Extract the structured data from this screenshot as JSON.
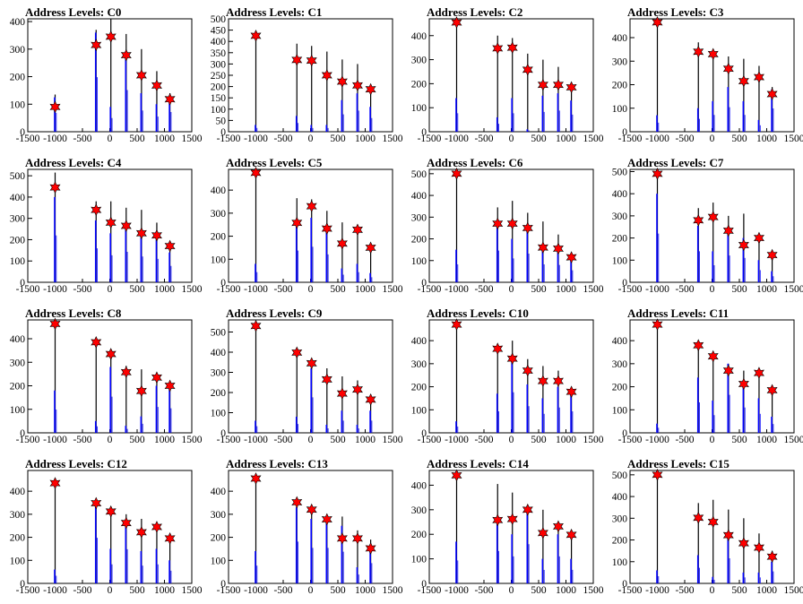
{
  "chart_data": [
    {
      "type": "bar",
      "title": "Address Levels: C0",
      "xlim": [
        -1500,
        1500
      ],
      "ylim": [
        0,
        410
      ],
      "xticks": [
        -1500,
        -1000,
        -500,
        0,
        500,
        1000,
        1500
      ],
      "yticks": [
        0,
        100,
        200,
        300,
        400
      ],
      "levels": [
        {
          "x": -1000,
          "peak": 90,
          "black": 135,
          "blue": 125
        },
        {
          "x": -250,
          "peak": 315,
          "black": 370,
          "blue": 360
        },
        {
          "x": 20,
          "peak": 345,
          "black": 410,
          "blue": 90
        },
        {
          "x": 300,
          "peak": 278,
          "black": 355,
          "blue": 275
        },
        {
          "x": 580,
          "peak": 205,
          "black": 300,
          "blue": 140
        },
        {
          "x": 860,
          "peak": 168,
          "black": 220,
          "blue": 100
        },
        {
          "x": 1100,
          "peak": 118,
          "black": 140,
          "blue": 130
        }
      ]
    },
    {
      "type": "bar",
      "title": "Address Levels: C1",
      "xlim": [
        -1500,
        1500
      ],
      "ylim": [
        0,
        500
      ],
      "xticks": [
        -1500,
        -1000,
        -500,
        0,
        500,
        1000,
        1500
      ],
      "yticks": [
        0,
        50,
        100,
        150,
        200,
        250,
        300,
        350,
        400,
        450,
        500
      ],
      "levels": [
        {
          "x": -1000,
          "peak": 425,
          "black": 425,
          "blue": 30
        },
        {
          "x": -250,
          "peak": 318,
          "black": 390,
          "blue": 70
        },
        {
          "x": 20,
          "peak": 315,
          "black": 380,
          "blue": 30
        },
        {
          "x": 300,
          "peak": 250,
          "black": 355,
          "blue": 30
        },
        {
          "x": 580,
          "peak": 222,
          "black": 320,
          "blue": 140
        },
        {
          "x": 860,
          "peak": 205,
          "black": 300,
          "blue": 170
        },
        {
          "x": 1100,
          "peak": 188,
          "black": 200,
          "blue": 110
        }
      ]
    },
    {
      "type": "bar",
      "title": "Address Levels: C2",
      "xlim": [
        -1500,
        1500
      ],
      "ylim": [
        0,
        470
      ],
      "xticks": [
        -1500,
        -1000,
        -500,
        0,
        500,
        1000,
        1500
      ],
      "yticks": [
        0,
        100,
        200,
        300,
        400
      ],
      "levels": [
        {
          "x": -1000,
          "peak": 455,
          "black": 455,
          "blue": 140
        },
        {
          "x": -250,
          "peak": 347,
          "black": 400,
          "blue": 60
        },
        {
          "x": 20,
          "peak": 350,
          "black": 390,
          "blue": 140
        },
        {
          "x": 300,
          "peak": 258,
          "black": 325,
          "blue": 10
        },
        {
          "x": 580,
          "peak": 195,
          "black": 300,
          "blue": 150
        },
        {
          "x": 860,
          "peak": 195,
          "black": 270,
          "blue": 160
        },
        {
          "x": 1100,
          "peak": 185,
          "black": 195,
          "blue": 130
        }
      ]
    },
    {
      "type": "bar",
      "title": "Address Levels: C3",
      "xlim": [
        -1500,
        1500
      ],
      "ylim": [
        0,
        480
      ],
      "xticks": [
        -1500,
        -1000,
        -500,
        0,
        500,
        1000,
        1500
      ],
      "yticks": [
        0,
        100,
        200,
        300,
        400
      ],
      "levels": [
        {
          "x": -1000,
          "peak": 465,
          "black": 465,
          "blue": 70
        },
        {
          "x": -250,
          "peak": 340,
          "black": 380,
          "blue": 100
        },
        {
          "x": 20,
          "peak": 330,
          "black": 340,
          "blue": 130
        },
        {
          "x": 300,
          "peak": 268,
          "black": 320,
          "blue": 190
        },
        {
          "x": 580,
          "peak": 215,
          "black": 310,
          "blue": 130
        },
        {
          "x": 860,
          "peak": 232,
          "black": 280,
          "blue": 50
        },
        {
          "x": 1100,
          "peak": 160,
          "black": 190,
          "blue": 180
        }
      ]
    },
    {
      "type": "bar",
      "title": "Address Levels: C4",
      "xlim": [
        -1500,
        1500
      ],
      "ylim": [
        0,
        530
      ],
      "xticks": [
        -1500,
        -1000,
        -500,
        0,
        500,
        1000,
        1500
      ],
      "yticks": [
        0,
        100,
        200,
        300,
        400,
        500
      ],
      "levels": [
        {
          "x": -1000,
          "peak": 445,
          "black": 515,
          "blue": 400
        },
        {
          "x": -250,
          "peak": 340,
          "black": 380,
          "blue": 290
        },
        {
          "x": 20,
          "peak": 280,
          "black": 380,
          "blue": 230
        },
        {
          "x": 300,
          "peak": 265,
          "black": 350,
          "blue": 260
        },
        {
          "x": 580,
          "peak": 230,
          "black": 340,
          "blue": 220
        },
        {
          "x": 860,
          "peak": 220,
          "black": 280,
          "blue": 200
        },
        {
          "x": 1100,
          "peak": 170,
          "black": 190,
          "blue": 140
        }
      ]
    },
    {
      "type": "bar",
      "title": "Address Levels: C5",
      "xlim": [
        -1500,
        1500
      ],
      "ylim": [
        0,
        490
      ],
      "xticks": [
        -1500,
        -1000,
        -500,
        0,
        500,
        1000,
        1500
      ],
      "yticks": [
        0,
        100,
        200,
        300,
        400
      ],
      "levels": [
        {
          "x": -1000,
          "peak": 475,
          "black": 475,
          "blue": 80
        },
        {
          "x": -250,
          "peak": 258,
          "black": 365,
          "blue": 250
        },
        {
          "x": 20,
          "peak": 330,
          "black": 360,
          "blue": 280
        },
        {
          "x": 300,
          "peak": 233,
          "black": 310,
          "blue": 220
        },
        {
          "x": 580,
          "peak": 168,
          "black": 260,
          "blue": 60
        },
        {
          "x": 860,
          "peak": 228,
          "black": 230,
          "blue": 80
        },
        {
          "x": 1100,
          "peak": 150,
          "black": 160,
          "blue": 40
        }
      ]
    },
    {
      "type": "bar",
      "title": "Address Levels: C6",
      "xlim": [
        -1500,
        1500
      ],
      "ylim": [
        0,
        520
      ],
      "xticks": [
        -1500,
        -1000,
        -500,
        0,
        500,
        1000,
        1500
      ],
      "yticks": [
        0,
        100,
        200,
        300,
        400,
        500
      ],
      "levels": [
        {
          "x": -1000,
          "peak": 500,
          "black": 500,
          "blue": 150
        },
        {
          "x": -250,
          "peak": 270,
          "black": 345,
          "blue": 265
        },
        {
          "x": 20,
          "peak": 270,
          "black": 375,
          "blue": 200
        },
        {
          "x": 300,
          "peak": 250,
          "black": 320,
          "blue": 240
        },
        {
          "x": 580,
          "peak": 160,
          "black": 280,
          "blue": 150
        },
        {
          "x": 860,
          "peak": 155,
          "black": 220,
          "blue": 145
        },
        {
          "x": 1100,
          "peak": 115,
          "black": 125,
          "blue": 100
        }
      ]
    },
    {
      "type": "bar",
      "title": "Address Levels: C7",
      "xlim": [
        -1500,
        1500
      ],
      "ylim": [
        0,
        510
      ],
      "xticks": [
        -1500,
        -1000,
        -500,
        0,
        500,
        1000,
        1500
      ],
      "yticks": [
        0,
        100,
        200,
        300,
        400,
        500
      ],
      "levels": [
        {
          "x": -1000,
          "peak": 490,
          "black": 490,
          "blue": 400
        },
        {
          "x": -250,
          "peak": 280,
          "black": 335,
          "blue": 255
        },
        {
          "x": 20,
          "peak": 295,
          "black": 360,
          "blue": 140
        },
        {
          "x": 300,
          "peak": 233,
          "black": 300,
          "blue": 220
        },
        {
          "x": 580,
          "peak": 168,
          "black": 310,
          "blue": 200
        },
        {
          "x": 860,
          "peak": 200,
          "black": 210,
          "blue": 100
        },
        {
          "x": 1100,
          "peak": 123,
          "black": 125,
          "blue": 50
        }
      ]
    },
    {
      "type": "bar",
      "title": "Address Levels: C8",
      "xlim": [
        -1500,
        1500
      ],
      "ylim": [
        0,
        480
      ],
      "xticks": [
        -1500,
        -1000,
        -500,
        0,
        500,
        1000,
        1500
      ],
      "yticks": [
        0,
        100,
        200,
        300,
        400
      ],
      "levels": [
        {
          "x": -1000,
          "peak": 463,
          "black": 463,
          "blue": 180
        },
        {
          "x": -250,
          "peak": 385,
          "black": 390,
          "blue": 50
        },
        {
          "x": 20,
          "peak": 335,
          "black": 340,
          "blue": 280
        },
        {
          "x": 300,
          "peak": 258,
          "black": 285,
          "blue": 30
        },
        {
          "x": 580,
          "peak": 178,
          "black": 270,
          "blue": 70
        },
        {
          "x": 860,
          "peak": 235,
          "black": 240,
          "blue": 200
        },
        {
          "x": 1100,
          "peak": 200,
          "black": 205,
          "blue": 190
        }
      ]
    },
    {
      "type": "bar",
      "title": "Address Levels: C9",
      "xlim": [
        -1500,
        1500
      ],
      "ylim": [
        0,
        560
      ],
      "xticks": [
        -1500,
        -1000,
        -500,
        0,
        500,
        1000,
        1500
      ],
      "yticks": [
        0,
        100,
        200,
        300,
        400,
        500
      ],
      "levels": [
        {
          "x": -1000,
          "peak": 530,
          "black": 530,
          "blue": 60
        },
        {
          "x": -250,
          "peak": 398,
          "black": 410,
          "blue": 80
        },
        {
          "x": 20,
          "peak": 345,
          "black": 345,
          "blue": 320
        },
        {
          "x": 300,
          "peak": 265,
          "black": 320,
          "blue": 40
        },
        {
          "x": 580,
          "peak": 195,
          "black": 280,
          "blue": 110
        },
        {
          "x": 860,
          "peak": 215,
          "black": 260,
          "blue": 40
        },
        {
          "x": 1100,
          "peak": 165,
          "black": 190,
          "blue": 110
        }
      ]
    },
    {
      "type": "bar",
      "title": "Address Levels: C10",
      "xlim": [
        -1500,
        1500
      ],
      "ylim": [
        0,
        490
      ],
      "xticks": [
        -1500,
        -1000,
        -500,
        0,
        500,
        1000,
        1500
      ],
      "yticks": [
        0,
        100,
        200,
        300,
        400
      ],
      "levels": [
        {
          "x": -1000,
          "peak": 470,
          "black": 470,
          "blue": 50
        },
        {
          "x": -250,
          "peak": 365,
          "black": 370,
          "blue": 170
        },
        {
          "x": 20,
          "peak": 322,
          "black": 400,
          "blue": 320
        },
        {
          "x": 300,
          "peak": 270,
          "black": 320,
          "blue": 210
        },
        {
          "x": 580,
          "peak": 225,
          "black": 290,
          "blue": 150
        },
        {
          "x": 860,
          "peak": 225,
          "black": 270,
          "blue": 200
        },
        {
          "x": 1100,
          "peak": 178,
          "black": 185,
          "blue": 170
        }
      ]
    },
    {
      "type": "bar",
      "title": "Address Levels: C11",
      "xlim": [
        -1500,
        1500
      ],
      "ylim": [
        0,
        490
      ],
      "xticks": [
        -1500,
        -1000,
        -500,
        0,
        500,
        1000,
        1500
      ],
      "yticks": [
        0,
        100,
        200,
        300,
        400
      ],
      "levels": [
        {
          "x": -1000,
          "peak": 470,
          "black": 470,
          "blue": 40
        },
        {
          "x": -250,
          "peak": 380,
          "black": 380,
          "blue": 240
        },
        {
          "x": 20,
          "peak": 332,
          "black": 340,
          "blue": 140
        },
        {
          "x": 300,
          "peak": 270,
          "black": 300,
          "blue": 300
        },
        {
          "x": 580,
          "peak": 212,
          "black": 270,
          "blue": 200
        },
        {
          "x": 860,
          "peak": 260,
          "black": 260,
          "blue": 150
        },
        {
          "x": 1100,
          "peak": 185,
          "black": 200,
          "blue": 70
        }
      ]
    },
    {
      "type": "bar",
      "title": "Address Levels: C12",
      "xlim": [
        -1500,
        1500
      ],
      "ylim": [
        0,
        490
      ],
      "xticks": [
        -1500,
        -1000,
        -500,
        0,
        500,
        1000,
        1500
      ],
      "yticks": [
        0,
        100,
        200,
        300,
        400
      ],
      "levels": [
        {
          "x": -1000,
          "peak": 435,
          "black": 435,
          "blue": 60
        },
        {
          "x": -250,
          "peak": 348,
          "black": 370,
          "blue": 360
        },
        {
          "x": 20,
          "peak": 312,
          "black": 320,
          "blue": 150
        },
        {
          "x": 300,
          "peak": 262,
          "black": 300,
          "blue": 270
        },
        {
          "x": 580,
          "peak": 222,
          "black": 280,
          "blue": 140
        },
        {
          "x": 860,
          "peak": 245,
          "black": 260,
          "blue": 150
        },
        {
          "x": 1100,
          "peak": 195,
          "black": 200,
          "blue": 100
        }
      ]
    },
    {
      "type": "bar",
      "title": "Address Levels: C13",
      "xlim": [
        -1500,
        1500
      ],
      "ylim": [
        0,
        490
      ],
      "xticks": [
        -1500,
        -1000,
        -500,
        0,
        500,
        1000,
        1500
      ],
      "yticks": [
        0,
        100,
        200,
        300,
        400
      ],
      "levels": [
        {
          "x": -1000,
          "peak": 455,
          "black": 455,
          "blue": 140
        },
        {
          "x": -250,
          "peak": 352,
          "black": 370,
          "blue": 330
        },
        {
          "x": 20,
          "peak": 320,
          "black": 320,
          "blue": 280
        },
        {
          "x": 300,
          "peak": 278,
          "black": 300,
          "blue": 280
        },
        {
          "x": 580,
          "peak": 195,
          "black": 290,
          "blue": 250
        },
        {
          "x": 860,
          "peak": 195,
          "black": 230,
          "blue": 70
        },
        {
          "x": 1100,
          "peak": 152,
          "black": 190,
          "blue": 160
        }
      ]
    },
    {
      "type": "bar",
      "title": "Address Levels: C14",
      "xlim": [
        -1500,
        1500
      ],
      "ylim": [
        0,
        460
      ],
      "xticks": [
        -1500,
        -1000,
        -500,
        0,
        500,
        1000,
        1500
      ],
      "yticks": [
        0,
        100,
        200,
        300,
        400
      ],
      "levels": [
        {
          "x": -1000,
          "peak": 440,
          "black": 440,
          "blue": 170
        },
        {
          "x": -250,
          "peak": 258,
          "black": 405,
          "blue": 240
        },
        {
          "x": 20,
          "peak": 262,
          "black": 370,
          "blue": 200
        },
        {
          "x": 300,
          "peak": 300,
          "black": 310,
          "blue": 290
        },
        {
          "x": 580,
          "peak": 205,
          "black": 300,
          "blue": 100
        },
        {
          "x": 860,
          "peak": 232,
          "black": 240,
          "blue": 200
        },
        {
          "x": 1100,
          "peak": 198,
          "black": 200,
          "blue": 100
        }
      ]
    },
    {
      "type": "bar",
      "title": "Address Levels: C15",
      "xlim": [
        -1500,
        1500
      ],
      "ylim": [
        0,
        520
      ],
      "xticks": [
        -1500,
        -1000,
        -500,
        0,
        500,
        1000,
        1500
      ],
      "yticks": [
        0,
        100,
        200,
        300,
        400,
        500
      ],
      "levels": [
        {
          "x": -1000,
          "peak": 500,
          "black": 500,
          "blue": 60
        },
        {
          "x": -250,
          "peak": 302,
          "black": 370,
          "blue": 130
        },
        {
          "x": 20,
          "peak": 283,
          "black": 385,
          "blue": 30
        },
        {
          "x": 300,
          "peak": 222,
          "black": 340,
          "blue": 210
        },
        {
          "x": 580,
          "peak": 185,
          "black": 300,
          "blue": 50
        },
        {
          "x": 860,
          "peak": 165,
          "black": 230,
          "blue": 50
        },
        {
          "x": 1100,
          "peak": 123,
          "black": 150,
          "blue": 100
        }
      ]
    }
  ]
}
